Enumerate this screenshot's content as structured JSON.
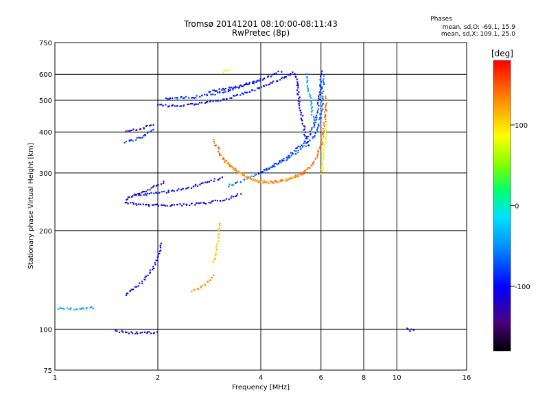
{
  "chart_data": {
    "type": "scatter",
    "title": "Tromsø 20141201 08:10:00-08:11:43",
    "subtitle": "RwPretec (8p)",
    "xlabel": "Frequency [MHz]",
    "ylabel": "Stationary phase Virtual Height [km]",
    "x_scale": "log",
    "y_scale": "log",
    "xlim": [
      1,
      16
    ],
    "ylim": [
      75,
      750
    ],
    "x_ticks": [
      1,
      2,
      4,
      6,
      8,
      10,
      16
    ],
    "x_tick_labels": [
      "1",
      "2",
      "4",
      "6",
      "8",
      "10",
      "16"
    ],
    "y_ticks": [
      75,
      100,
      200,
      300,
      400,
      500,
      600,
      750
    ],
    "y_tick_labels": [
      "75",
      "100",
      "200",
      "300",
      "400",
      "500",
      "600",
      "750"
    ],
    "grid": true,
    "stats": {
      "heading": "Phases",
      "line_o": "mean, sd,O: -69.1, 15.9",
      "line_x": "mean, sd,X: 109.1, 25.0"
    },
    "colorbar": {
      "label": "[deg]",
      "ticks": [
        100,
        0,
        -100
      ],
      "tick_labels": [
        "100",
        "0",
        "-100"
      ],
      "range": [
        -180,
        180
      ]
    },
    "traces": [
      {
        "phase": -115,
        "points": [
          [
            1.6,
            245
          ],
          [
            1.8,
            241
          ],
          [
            2.0,
            240
          ],
          [
            2.4,
            241
          ],
          [
            2.8,
            244
          ],
          [
            3.2,
            252
          ],
          [
            3.5,
            262
          ]
        ]
      },
      {
        "phase": -105,
        "points": [
          [
            1.7,
            257
          ],
          [
            2.0,
            262
          ],
          [
            2.4,
            270
          ],
          [
            2.8,
            283
          ],
          [
            3.1,
            293
          ]
        ]
      },
      {
        "phase": -125,
        "points": [
          [
            1.6,
            250
          ],
          [
            1.9,
            270
          ],
          [
            2.1,
            285
          ]
        ]
      },
      {
        "phase": -110,
        "points": [
          [
            1.6,
            128
          ],
          [
            1.8,
            140
          ],
          [
            1.95,
            158
          ],
          [
            2.05,
            185
          ]
        ]
      },
      {
        "phase": -105,
        "points": [
          [
            2.0,
            485
          ],
          [
            2.2,
            483
          ],
          [
            2.5,
            488
          ],
          [
            3.0,
            500
          ],
          [
            3.5,
            525
          ],
          [
            4.0,
            550
          ],
          [
            4.5,
            580
          ],
          [
            5.0,
            612
          ]
        ]
      },
      {
        "phase": -95,
        "points": [
          [
            2.1,
            510
          ],
          [
            2.6,
            515
          ],
          [
            3.0,
            528
          ],
          [
            3.5,
            555
          ],
          [
            4.0,
            580
          ]
        ]
      },
      {
        "phase": -110,
        "points": [
          [
            2.8,
            535
          ],
          [
            3.2,
            545
          ],
          [
            3.8,
            570
          ],
          [
            4.2,
            595
          ],
          [
            4.6,
            618
          ]
        ]
      },
      {
        "phase": -130,
        "points": [
          [
            1.6,
            405
          ],
          [
            1.8,
            412
          ],
          [
            1.95,
            425
          ]
        ]
      },
      {
        "phase": -90,
        "points": [
          [
            1.6,
            372
          ],
          [
            1.8,
            390
          ],
          [
            1.95,
            410
          ]
        ]
      },
      {
        "phase": -70,
        "points": [
          [
            3.2,
            275
          ],
          [
            3.5,
            285
          ],
          [
            3.8,
            295
          ],
          [
            4.2,
            310
          ],
          [
            4.8,
            335
          ],
          [
            5.3,
            360
          ],
          [
            5.7,
            390
          ],
          [
            5.9,
            420
          ],
          [
            6.0,
            470
          ],
          [
            6.1,
            600
          ]
        ]
      },
      {
        "phase": -95,
        "points": [
          [
            3.9,
            300
          ],
          [
            4.3,
            315
          ],
          [
            4.8,
            340
          ],
          [
            5.2,
            365
          ],
          [
            5.5,
            390
          ],
          [
            5.7,
            420
          ],
          [
            5.85,
            470
          ],
          [
            5.95,
            550
          ],
          [
            6.0,
            620
          ]
        ]
      },
      {
        "phase": -115,
        "points": [
          [
            5.0,
            610
          ],
          [
            5.1,
            560
          ],
          [
            5.15,
            500
          ],
          [
            5.25,
            450
          ],
          [
            5.35,
            400
          ],
          [
            5.5,
            360
          ]
        ]
      },
      {
        "phase": -50,
        "points": [
          [
            5.4,
            600
          ],
          [
            5.5,
            540
          ],
          [
            5.6,
            480
          ],
          [
            5.7,
            430
          ]
        ]
      },
      {
        "phase": 145,
        "points": [
          [
            2.9,
            380
          ],
          [
            3.05,
            340
          ],
          [
            3.3,
            310
          ],
          [
            3.6,
            294
          ],
          [
            3.9,
            284
          ],
          [
            4.3,
            282
          ],
          [
            4.8,
            288
          ],
          [
            5.3,
            300
          ],
          [
            5.7,
            325
          ],
          [
            6.0,
            370
          ],
          [
            6.15,
            450
          ],
          [
            6.2,
            520
          ]
        ]
      },
      {
        "phase": 125,
        "points": [
          [
            3.1,
            330
          ],
          [
            3.4,
            305
          ],
          [
            3.7,
            290
          ],
          [
            4.1,
            283
          ],
          [
            4.6,
            285
          ],
          [
            5.1,
            295
          ],
          [
            5.6,
            315
          ]
        ]
      },
      {
        "phase": 80,
        "points": [
          [
            6.0,
            300
          ],
          [
            6.1,
            350
          ],
          [
            6.2,
            430
          ]
        ]
      },
      {
        "phase": 130,
        "points": [
          [
            2.5,
            132
          ],
          [
            2.65,
            134
          ],
          [
            2.8,
            140
          ],
          [
            2.92,
            148
          ]
        ]
      },
      {
        "phase": 110,
        "points": [
          [
            2.9,
            160
          ],
          [
            2.95,
            175
          ],
          [
            3.0,
            195
          ],
          [
            3.02,
            215
          ]
        ]
      },
      {
        "phase": 100,
        "points": [
          [
            3.1,
            615
          ],
          [
            3.25,
            625
          ]
        ]
      },
      {
        "phase": -50,
        "points": [
          [
            1.0,
            116
          ],
          [
            1.1,
            116
          ],
          [
            1.2,
            116
          ],
          [
            1.3,
            117
          ]
        ]
      },
      {
        "phase": -120,
        "points": [
          [
            1.5,
            99
          ],
          [
            1.7,
            98
          ],
          [
            2.0,
            98
          ]
        ]
      },
      {
        "phase": -130,
        "points": [
          [
            10.6,
            101
          ],
          [
            10.9,
            100
          ],
          [
            11.3,
            100
          ]
        ]
      }
    ]
  }
}
